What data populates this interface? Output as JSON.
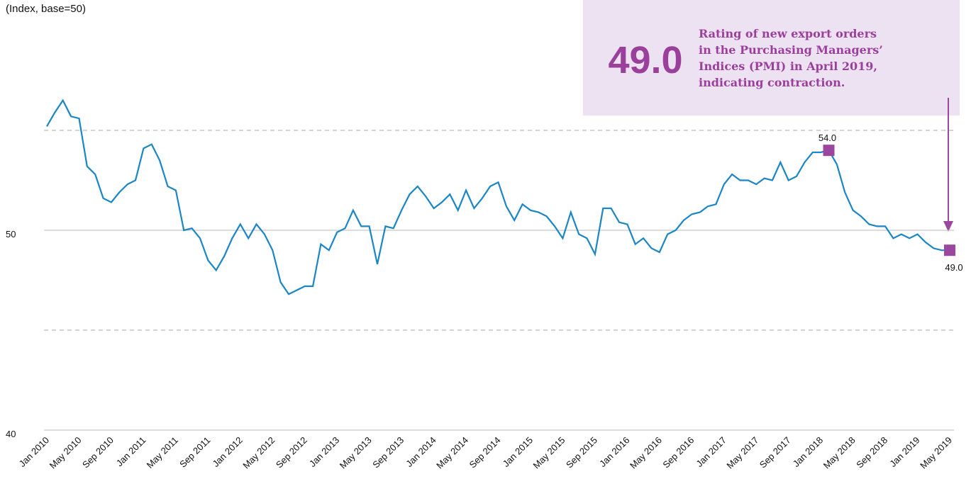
{
  "chart_data": {
    "type": "line",
    "title": "(Index, base=50)",
    "categories": [
      "Jan 2010",
      null,
      null,
      null,
      "May 2010",
      null,
      null,
      null,
      "Sep 2010",
      null,
      null,
      null,
      "Jan 2011",
      null,
      null,
      null,
      "May 2011",
      null,
      null,
      null,
      "Sep 2011",
      null,
      null,
      null,
      "Jan 2012",
      null,
      null,
      null,
      "May 2012",
      null,
      null,
      null,
      "Sep 2012",
      null,
      null,
      null,
      "Jan 2013",
      null,
      null,
      null,
      "May 2013",
      null,
      null,
      null,
      "Sep 2013",
      null,
      null,
      null,
      "Jan 2014",
      null,
      null,
      null,
      "May 2014",
      null,
      null,
      null,
      "Sep 2014",
      null,
      null,
      null,
      "Jan 2015",
      null,
      null,
      null,
      "May 2015",
      null,
      null,
      null,
      "Sep 2015",
      null,
      null,
      null,
      "Jan 2016",
      null,
      null,
      null,
      "May 2016",
      null,
      null,
      null,
      "Sep 2016",
      null,
      null,
      null,
      "Jan 2017",
      null,
      null,
      null,
      "May 2017",
      null,
      null,
      null,
      "Sep 2017",
      null,
      null,
      null,
      "Jan 2018",
      null,
      null,
      null,
      "May 2018",
      null,
      null,
      null,
      "Sep 2018",
      null,
      null,
      null,
      "Jan 2019",
      null,
      null,
      null,
      "May 2019"
    ],
    "values": [
      55.2,
      55.9,
      56.5,
      55.7,
      55.6,
      53.2,
      52.8,
      51.6,
      51.4,
      51.9,
      52.3,
      52.5,
      54.1,
      54.3,
      53.5,
      52.2,
      52.0,
      50.0,
      50.1,
      49.6,
      48.5,
      48.0,
      48.7,
      49.6,
      50.3,
      49.6,
      50.3,
      49.8,
      49.0,
      47.4,
      46.8,
      47.0,
      47.2,
      47.2,
      49.3,
      49.0,
      49.9,
      50.1,
      51.0,
      50.2,
      50.2,
      48.3,
      50.2,
      50.1,
      51.0,
      51.8,
      52.2,
      51.7,
      51.1,
      51.4,
      51.8,
      51.0,
      52.0,
      51.1,
      51.6,
      52.2,
      52.4,
      51.2,
      50.5,
      51.3,
      51.0,
      50.9,
      50.7,
      50.2,
      49.6,
      50.9,
      49.8,
      49.6,
      48.8,
      51.1,
      51.1,
      50.4,
      50.3,
      49.3,
      49.6,
      49.1,
      48.9,
      49.8,
      50.0,
      50.5,
      50.8,
      50.9,
      51.2,
      51.3,
      52.3,
      52.8,
      52.5,
      52.5,
      52.3,
      52.6,
      52.5,
      53.4,
      52.5,
      52.7,
      53.4,
      53.9,
      53.9,
      54.0,
      53.3,
      51.9,
      51.0,
      50.7,
      50.3,
      50.2,
      50.2,
      49.6,
      49.8,
      49.6,
      49.8,
      49.4,
      49.1,
      49.0,
      49.0
    ],
    "value_labels": [
      null,
      null,
      null,
      null,
      null,
      null,
      null,
      null,
      null,
      null,
      null,
      null,
      null,
      null,
      null,
      null,
      null,
      null,
      null,
      null,
      null,
      null,
      null,
      null,
      null,
      null,
      null,
      null,
      null,
      null,
      null,
      null,
      null,
      null,
      null,
      null,
      null,
      null,
      null,
      null,
      null,
      null,
      null,
      null,
      null,
      null,
      null,
      null,
      null,
      null,
      null,
      null,
      null,
      null,
      null,
      null,
      null,
      null,
      null,
      null,
      null,
      null,
      null,
      null,
      null,
      null,
      null,
      null,
      null,
      null,
      null,
      null,
      null,
      null,
      null,
      null,
      null,
      null,
      null,
      null,
      null,
      null,
      null,
      null,
      null,
      null,
      null,
      null,
      null,
      null,
      null,
      null,
      null,
      null,
      null,
      null,
      null,
      "54.0",
      null,
      null,
      null,
      null,
      null,
      null,
      null,
      null,
      null,
      null,
      null,
      null,
      null,
      null,
      "49.0"
    ],
    "color": "#1a86c6",
    "marker_color": "#9b479e",
    "ylim": [
      40,
      58
    ],
    "yticks": [
      40,
      50
    ],
    "minor_yticks": [
      45,
      55
    ],
    "grid": true,
    "annotation": {
      "value": "49.0",
      "text": [
        "Rating of new export orders",
        "in the Purchasing Managers’",
        "Indices (PMI) in April 2019,",
        "indicating contraction."
      ]
    }
  }
}
